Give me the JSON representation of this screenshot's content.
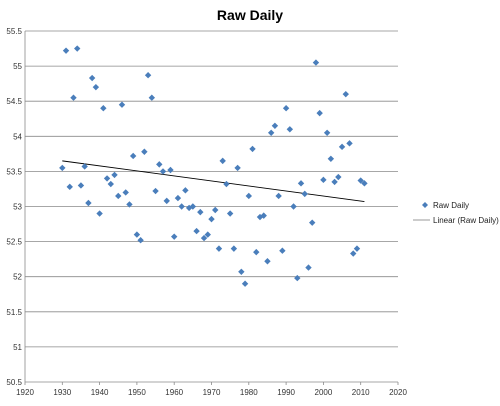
{
  "chart_data": {
    "type": "scatter",
    "title": "Raw Daily",
    "xlabel": "",
    "ylabel": "",
    "xlim": [
      1920,
      2020
    ],
    "ylim": [
      50.5,
      55.5
    ],
    "x_ticks": [
      "1920",
      "1930",
      "1940",
      "1950",
      "1960",
      "1970",
      "1980",
      "1990",
      "2000",
      "2010",
      "2020"
    ],
    "y_ticks": [
      "50.5",
      "51",
      "51.5",
      "52",
      "52.5",
      "53",
      "53.5",
      "54",
      "54.5",
      "55",
      "55.5"
    ],
    "grid": "horizontal",
    "legend_position": "right",
    "series": [
      {
        "name": "Raw Daily",
        "kind": "markers",
        "marker": "diamond",
        "color": "#4a7ebb",
        "points": [
          [
            1930,
            53.55
          ],
          [
            1931,
            55.22
          ],
          [
            1932,
            53.28
          ],
          [
            1933,
            54.55
          ],
          [
            1934,
            55.25
          ],
          [
            1935,
            53.3
          ],
          [
            1936,
            53.57
          ],
          [
            1937,
            53.05
          ],
          [
            1938,
            54.83
          ],
          [
            1939,
            54.7
          ],
          [
            1940,
            52.9
          ],
          [
            1941,
            54.4
          ],
          [
            1942,
            53.4
          ],
          [
            1943,
            53.32
          ],
          [
            1944,
            53.45
          ],
          [
            1945,
            53.15
          ],
          [
            1946,
            54.45
          ],
          [
            1947,
            53.2
          ],
          [
            1948,
            53.03
          ],
          [
            1949,
            53.72
          ],
          [
            1950,
            52.6
          ],
          [
            1951,
            52.52
          ],
          [
            1952,
            53.78
          ],
          [
            1953,
            54.87
          ],
          [
            1954,
            54.55
          ],
          [
            1955,
            53.22
          ],
          [
            1956,
            53.6
          ],
          [
            1957,
            53.5
          ],
          [
            1958,
            53.08
          ],
          [
            1959,
            53.52
          ],
          [
            1960,
            52.57
          ],
          [
            1961,
            53.12
          ],
          [
            1962,
            53.0
          ],
          [
            1963,
            53.23
          ],
          [
            1964,
            52.98
          ],
          [
            1965,
            53.0
          ],
          [
            1966,
            52.65
          ],
          [
            1967,
            52.92
          ],
          [
            1968,
            52.55
          ],
          [
            1969,
            52.6
          ],
          [
            1970,
            52.82
          ],
          [
            1971,
            52.95
          ],
          [
            1972,
            52.4
          ],
          [
            1973,
            53.65
          ],
          [
            1974,
            53.32
          ],
          [
            1975,
            52.9
          ],
          [
            1976,
            52.4
          ],
          [
            1977,
            53.55
          ],
          [
            1978,
            52.07
          ],
          [
            1979,
            51.9
          ],
          [
            1980,
            53.15
          ],
          [
            1981,
            53.82
          ],
          [
            1982,
            52.35
          ],
          [
            1983,
            52.85
          ],
          [
            1984,
            52.87
          ],
          [
            1985,
            52.22
          ],
          [
            1986,
            54.05
          ],
          [
            1987,
            54.15
          ],
          [
            1988,
            53.15
          ],
          [
            1989,
            52.37
          ],
          [
            1990,
            54.4
          ],
          [
            1991,
            54.1
          ],
          [
            1992,
            53.0
          ],
          [
            1993,
            51.98
          ],
          [
            1994,
            53.33
          ],
          [
            1995,
            53.18
          ],
          [
            1996,
            52.13
          ],
          [
            1997,
            52.77
          ],
          [
            1998,
            55.05
          ],
          [
            1999,
            54.33
          ],
          [
            2000,
            53.38
          ],
          [
            2001,
            54.05
          ],
          [
            2002,
            53.68
          ],
          [
            2003,
            53.35
          ],
          [
            2004,
            53.42
          ],
          [
            2005,
            53.85
          ],
          [
            2006,
            54.6
          ],
          [
            2007,
            53.9
          ],
          [
            2008,
            52.33
          ],
          [
            2009,
            52.4
          ],
          [
            2010,
            53.37
          ],
          [
            2011,
            53.33
          ]
        ]
      },
      {
        "name": "Linear (Raw Daily)",
        "kind": "line",
        "color": "#000000",
        "points": [
          [
            1930,
            53.65
          ],
          [
            2011,
            53.07
          ]
        ]
      }
    ]
  }
}
